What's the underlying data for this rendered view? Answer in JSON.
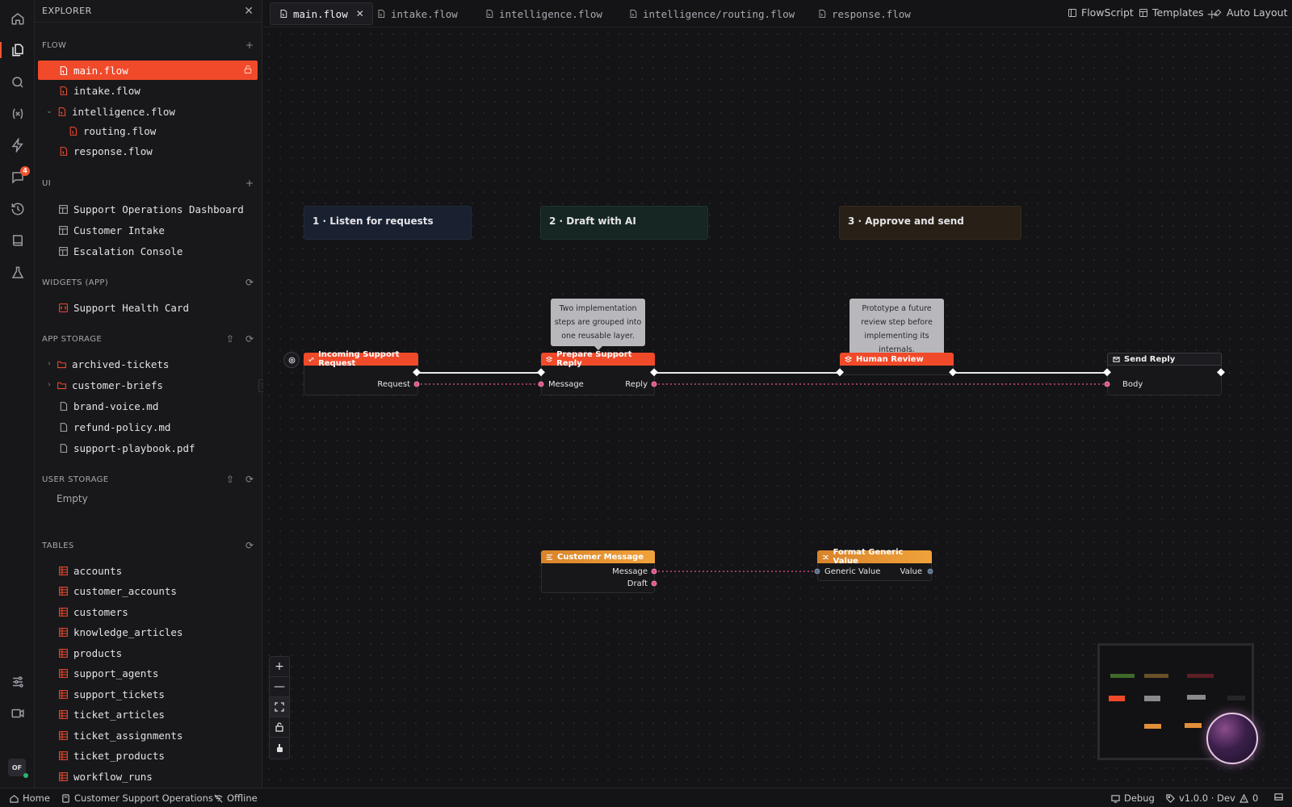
{
  "explorer": {
    "title": "EXPLORER",
    "sections": {
      "flow": {
        "title": "FLOW"
      },
      "ui": {
        "title": "UI"
      },
      "widgets": {
        "title": "WIDGETS (APP)"
      },
      "app_storage": {
        "title": "APP STORAGE"
      },
      "user_storage": {
        "title": "USER STORAGE",
        "empty": "Empty"
      },
      "tables": {
        "title": "TABLES"
      }
    },
    "flow_items": [
      "main.flow",
      "intake.flow",
      "intelligence.flow",
      "routing.flow",
      "response.flow"
    ],
    "ui_items": [
      "Support Operations Dashboard",
      "Customer Intake",
      "Escalation Console"
    ],
    "widget_items": [
      "Support Health Card"
    ],
    "storage_items": [
      "archived-tickets",
      "customer-briefs",
      "brand-voice.md",
      "refund-policy.md",
      "support-playbook.pdf"
    ],
    "table_items": [
      "accounts",
      "customer_accounts",
      "customers",
      "knowledge_articles",
      "products",
      "support_agents",
      "support_tickets",
      "ticket_articles",
      "ticket_assignments",
      "ticket_products",
      "workflow_runs"
    ]
  },
  "activity": {
    "chat_badge": "4",
    "avatar": "OF"
  },
  "tabs": [
    "main.flow",
    "intake.flow",
    "intelligence.flow",
    "intelligence/routing.flow",
    "response.flow"
  ],
  "toolbar": {
    "flowscript": "FlowScript",
    "templates": "Templates",
    "auto_layout": "Auto Layout"
  },
  "canvas": {
    "groups": [
      "1 · Listen for requests",
      "2 · Draft with AI",
      "3 · Approve and send"
    ],
    "notes": {
      "prepare": "Two implementation steps are grouped into one reusable layer.",
      "review": "Prototype a future review step before implementing its internals."
    },
    "nodes": {
      "incoming": {
        "title": "Incoming Support Request",
        "out": "Request"
      },
      "prepare": {
        "title": "Prepare Support Reply",
        "in": "Message",
        "out": "Reply"
      },
      "review": {
        "title": "Human Review"
      },
      "send": {
        "title": "Send Reply",
        "in": "Body"
      },
      "customer_message": {
        "title": "Customer Message",
        "out1": "Message",
        "out2": "Draft"
      },
      "format": {
        "title": "Format Generic Value",
        "in": "Generic Value",
        "out": "Value"
      }
    }
  },
  "statusbar": {
    "home": "Home",
    "project": "Customer Support Operations",
    "connection": "Offline",
    "debug": "Debug",
    "version": "v1.0.0 · Dev",
    "warnings": "0"
  },
  "colors": {
    "accent": "#f04a2a",
    "orange": "#f0a23a",
    "wire_exec": "#e8e8ec",
    "wire_data": "#e0508a"
  }
}
